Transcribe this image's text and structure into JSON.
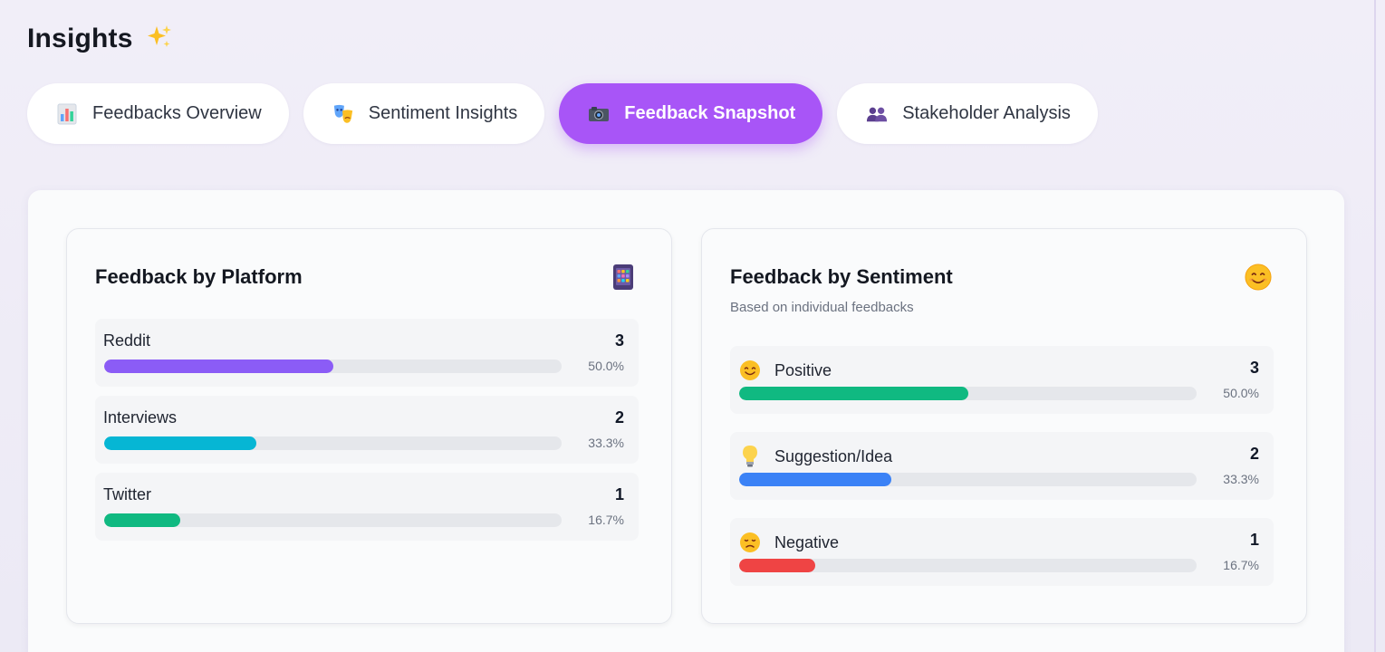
{
  "page": {
    "title": "Insights",
    "title_icon": "sparkles-icon"
  },
  "tabs": [
    {
      "label": "Feedbacks Overview",
      "icon": "bar-chart-icon",
      "active": false
    },
    {
      "label": "Sentiment Insights",
      "icon": "theater-masks-icon",
      "active": false
    },
    {
      "label": "Feedback Snapshot",
      "icon": "camera-icon",
      "active": true
    },
    {
      "label": "Stakeholder Analysis",
      "icon": "people-icon",
      "active": false
    }
  ],
  "platform_card": {
    "title": "Feedback by Platform",
    "icon": "mobile-phone-icon",
    "rows": [
      {
        "label": "Reddit",
        "count": "3",
        "percent": "50.0%",
        "fraction": 0.5,
        "color": "#8b5cf6"
      },
      {
        "label": "Interviews",
        "count": "2",
        "percent": "33.3%",
        "fraction": 0.333,
        "color": "#06b6d4"
      },
      {
        "label": "Twitter",
        "count": "1",
        "percent": "16.7%",
        "fraction": 0.167,
        "color": "#10b981"
      }
    ]
  },
  "sentiment_card": {
    "title": "Feedback by Sentiment",
    "subtitle": "Based on individual feedbacks",
    "icon": "smiling-face-icon",
    "rows": [
      {
        "label": "Positive",
        "emoji": "smiling-face-icon",
        "count": "3",
        "percent": "50.0%",
        "fraction": 0.5,
        "color": "#10b981"
      },
      {
        "label": "Suggestion/Idea",
        "emoji": "light-bulb-icon",
        "count": "2",
        "percent": "33.3%",
        "fraction": 0.333,
        "color": "#3b82f6"
      },
      {
        "label": "Negative",
        "emoji": "sad-face-icon",
        "count": "1",
        "percent": "16.7%",
        "fraction": 0.167,
        "color": "#ef4444"
      }
    ]
  }
}
